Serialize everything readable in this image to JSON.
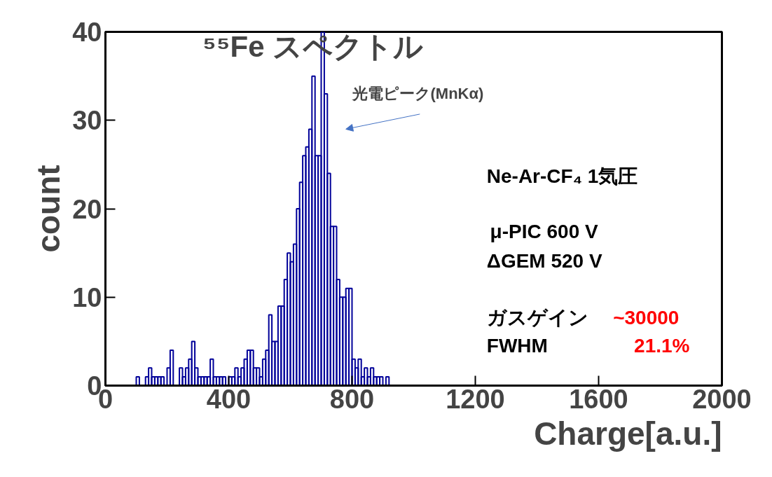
{
  "chart_data": {
    "type": "histogram",
    "title": "⁵⁵Fe スペクトル",
    "xlabel": "Charge[a.u.]",
    "ylabel": "count",
    "bins": [
      100,
      110,
      120,
      130,
      140,
      150,
      160,
      170,
      180,
      190,
      200,
      210,
      220,
      230,
      240,
      250,
      260,
      270,
      280,
      290,
      300,
      310,
      320,
      330,
      340,
      350,
      360,
      370,
      380,
      390,
      400,
      410,
      420,
      430,
      440,
      450,
      460,
      470,
      480,
      490,
      500,
      510,
      520,
      530,
      540,
      550,
      560,
      570,
      580,
      590,
      600,
      610,
      620,
      630,
      640,
      650,
      660,
      670,
      680,
      690,
      700,
      710,
      720,
      730,
      740,
      750,
      760,
      770,
      780,
      790,
      800,
      810,
      820,
      830,
      840,
      850,
      860,
      870,
      880,
      890,
      900,
      910,
      920
    ],
    "values": [
      1,
      0,
      0,
      1,
      2,
      1,
      1,
      1,
      1,
      0,
      2,
      4,
      0,
      0,
      2,
      1,
      2,
      3,
      5,
      2,
      1,
      1,
      1,
      1,
      3,
      1,
      1,
      1,
      1,
      0,
      1,
      1,
      2,
      1,
      2,
      3,
      4,
      4,
      2,
      2,
      1,
      3,
      4,
      8,
      5,
      5,
      9,
      9,
      12,
      15,
      14,
      16,
      20,
      23,
      26,
      27,
      29,
      35,
      26,
      26,
      40,
      33,
      24,
      18,
      18,
      12,
      10,
      10,
      11,
      11,
      3,
      2,
      3,
      1,
      2,
      1,
      2,
      1,
      1,
      1,
      0,
      1
    ],
    "color": "#000099",
    "xlim": [
      0,
      2000
    ],
    "ylim": [
      0,
      40
    ],
    "xticks": [
      0,
      400,
      800,
      1200,
      1600,
      2000
    ],
    "yticks": [
      0,
      10,
      20,
      30,
      40
    ],
    "grid": false,
    "annotations": [
      "光電ピーク(MnKα)",
      "Ne-Ar-CF₄ 1気圧",
      "μ-PIC  600 V",
      "ΔGEM 520 V",
      "ガスゲイン",
      "~30000",
      "FWHM",
      "21.1%"
    ]
  }
}
